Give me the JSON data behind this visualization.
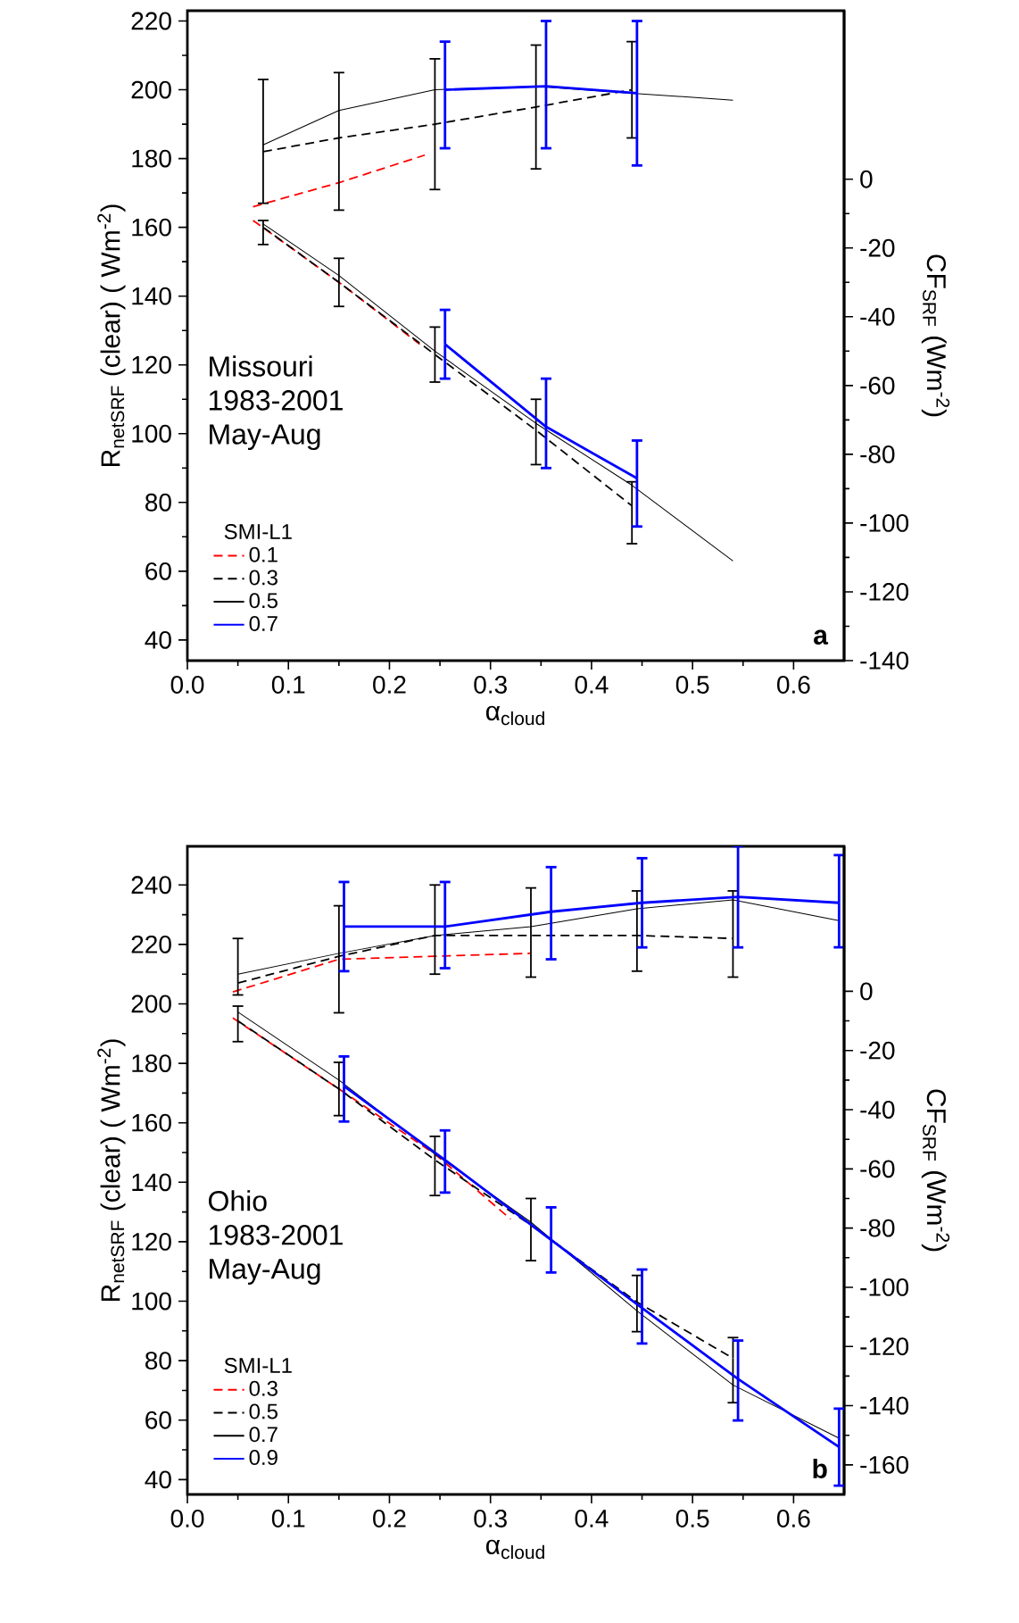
{
  "chart_data": [
    {
      "type": "line",
      "xlabel": "α$_{cloud}$",
      "ylabel": "R$_{netSRF}$ (clear) ( Wm$^{-2}$)",
      "y2label": "CF$_{SRF}$ (Wm$^{-2}$)",
      "legend_title": "SMI-L1",
      "legend": "bottom left",
      "annotations": [
        "Missouri",
        "1983-2001",
        "May-Aug",
        "a"
      ],
      "xlim": [
        0,
        0.65
      ],
      "xticks": [
        {
          "value": 0,
          "label": "0.0"
        },
        0.1,
        0.2,
        0.3,
        0.4,
        0.5,
        0.6
      ],
      "ylim": [
        34,
        223
      ],
      "yticks": [
        40,
        60,
        80,
        100,
        120,
        140,
        160,
        180,
        200,
        220
      ],
      "y2lim": [
        -140,
        49
      ],
      "y2ticks": [
        0,
        -20,
        -40,
        -60,
        -80,
        -100,
        -120,
        -140
      ],
      "series": [
        {
          "name": "0.1",
          "color": "#ff0000",
          "line_style": "dashed",
          "x": [
            0.065,
            0.15,
            0.235
          ],
          "values": [
            166,
            173,
            181
          ]
        },
        {
          "name": "0.3",
          "color": "#000000",
          "line_style": "dashed",
          "x": [
            0.075,
            0.15,
            0.245,
            0.345,
            0.44
          ],
          "values": [
            182,
            186,
            190,
            195,
            200
          ],
          "errors": [
            [
              167,
              203
            ],
            [
              165,
              205
            ],
            [
              171,
              209
            ],
            [
              177,
              213
            ],
            [
              186,
              214
            ]
          ]
        },
        {
          "name": "0.5",
          "color": "#000000",
          "line_style": "solid",
          "x": [
            0.075,
            0.15,
            0.245,
            0.345,
            0.44,
            0.54
          ],
          "values": [
            184,
            194,
            200,
            201,
            199,
            197
          ]
        },
        {
          "name": "0.7",
          "color": "#0000ff",
          "line_style": "solid",
          "x": [
            0.255,
            0.355,
            0.445
          ],
          "values": [
            200,
            201,
            199
          ],
          "errors": [
            [
              183,
              214
            ],
            [
              183,
              220
            ],
            [
              178,
              220
            ]
          ]
        },
        {
          "color": "#ff0000",
          "line_style": "dashed",
          "axis": "y2",
          "x": [
            0.065,
            0.15,
            0.23
          ],
          "values": [
            -12,
            -30,
            -48
          ]
        },
        {
          "color": "#000000",
          "line_style": "dashed",
          "axis": "y2",
          "x": [
            0.075,
            0.15,
            0.245,
            0.345,
            0.44
          ],
          "values": [
            -14,
            -30,
            -51,
            -73,
            -95
          ],
          "errors": [
            [
              -19,
              -12
            ],
            [
              -37,
              -23
            ],
            [
              -59,
              -43
            ],
            [
              -83,
              -64
            ],
            [
              -106,
              -88
            ]
          ]
        },
        {
          "color": "#000000",
          "line_style": "solid",
          "axis": "y2",
          "x": [
            0.075,
            0.15,
            0.245,
            0.345,
            0.44,
            0.54
          ],
          "values": [
            -13,
            -28,
            -50,
            -71,
            -89,
            -111
          ]
        },
        {
          "color": "#0000ff",
          "line_style": "solid",
          "axis": "y2",
          "x": [
            0.255,
            0.355,
            0.445
          ],
          "values": [
            -48,
            -72,
            -87
          ],
          "errors": [
            [
              -58,
              -38
            ],
            [
              -84,
              -58
            ],
            [
              -101,
              -76
            ]
          ]
        }
      ]
    },
    {
      "type": "line",
      "xlabel": "α$_{cloud}$",
      "ylabel": "R$_{netSRF}$ (clear) ( Wm$^{-2}$)",
      "y2label": "CF$_{SRF}$ (Wm$^{-2}$)",
      "legend_title": "SMI-L1",
      "legend": "bottom left",
      "annotations": [
        "Ohio",
        "1983-2001",
        "May-Aug",
        "b"
      ],
      "xlim": [
        0,
        0.65
      ],
      "xticks": [
        {
          "value": 0,
          "label": "0.0"
        },
        0.1,
        0.2,
        0.3,
        0.4,
        0.5,
        0.6
      ],
      "ylim": [
        35,
        253
      ],
      "yticks": [
        40,
        60,
        80,
        100,
        120,
        140,
        160,
        180,
        200,
        220,
        240
      ],
      "y2lim": [
        -170,
        49
      ],
      "y2ticks": [
        0,
        -20,
        -40,
        -60,
        -80,
        -100,
        -120,
        -140,
        -160
      ],
      "series": [
        {
          "name": "0.3",
          "color": "#ff0000",
          "line_style": "dashed",
          "x": [
            0.045,
            0.15,
            0.245,
            0.34
          ],
          "values": [
            204,
            215,
            216,
            217
          ]
        },
        {
          "name": "0.5",
          "color": "#000000",
          "line_style": "dashed",
          "x": [
            0.05,
            0.15,
            0.245,
            0.34,
            0.445,
            0.54
          ],
          "values": [
            207,
            216,
            223,
            223,
            223,
            222
          ],
          "errors": [
            [
              203,
              222
            ],
            [
              197,
              233
            ],
            [
              210,
              240
            ],
            [
              209,
              239
            ],
            [
              211,
              238
            ],
            [
              209,
              238
            ]
          ]
        },
        {
          "name": "0.7",
          "color": "#000000",
          "line_style": "solid",
          "x": [
            0.05,
            0.15,
            0.245,
            0.34,
            0.445,
            0.54,
            0.645
          ],
          "values": [
            210,
            217,
            223,
            226,
            232,
            235,
            228
          ]
        },
        {
          "name": "0.9",
          "color": "#0000ff",
          "line_style": "solid",
          "x": [
            0.155,
            0.255,
            0.36,
            0.45,
            0.545,
            0.645
          ],
          "values": [
            226,
            226,
            231,
            234,
            236,
            234
          ],
          "errors": [
            [
              211,
              241
            ],
            [
              212,
              241
            ],
            [
              215,
              246
            ],
            [
              219,
              249
            ],
            [
              219,
              253
            ],
            [
              219,
              250
            ]
          ]
        },
        {
          "color": "#ff0000",
          "line_style": "dashed",
          "axis": "y2",
          "x": [
            0.045,
            0.15,
            0.245,
            0.32
          ],
          "values": [
            -9,
            -33,
            -55,
            -77
          ]
        },
        {
          "color": "#000000",
          "line_style": "dashed",
          "axis": "y2",
          "x": [
            0.05,
            0.15,
            0.245,
            0.34,
            0.445,
            0.54
          ],
          "values": [
            -10,
            -33,
            -57,
            -79,
            -105,
            -124
          ],
          "errors": [
            [
              -17,
              -5
            ],
            [
              -42,
              -24
            ],
            [
              -69,
              -49
            ],
            [
              -91,
              -70
            ],
            [
              -115,
              -96
            ],
            [
              -139,
              -117
            ]
          ]
        },
        {
          "color": "#000000",
          "line_style": "solid",
          "axis": "y2",
          "x": [
            0.05,
            0.15,
            0.245,
            0.34,
            0.445,
            0.54,
            0.645
          ],
          "values": [
            -7,
            -30,
            -55,
            -78,
            -108,
            -133,
            -151
          ]
        },
        {
          "color": "#0000ff",
          "line_style": "solid",
          "axis": "y2",
          "x": [
            0.155,
            0.255,
            0.36,
            0.45,
            0.545,
            0.645
          ],
          "values": [
            -32,
            -57,
            -84,
            -107,
            -131,
            -154
          ],
          "errors": [
            [
              -44,
              -22
            ],
            [
              -68,
              -47
            ],
            [
              -95,
              -73
            ],
            [
              -119,
              -94
            ],
            [
              -145,
              -118
            ],
            [
              -167,
              -141
            ]
          ]
        }
      ]
    }
  ]
}
